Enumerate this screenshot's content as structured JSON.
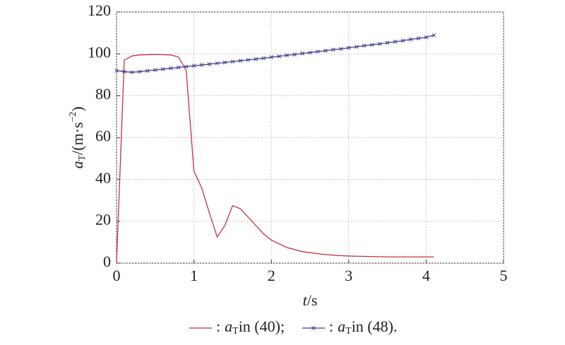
{
  "chart_data": {
    "type": "line",
    "x_label": {
      "symbol": "t",
      "unit": "/s"
    },
    "y_label": {
      "symbol": "a",
      "subscript": "T",
      "unit": "/(m·s",
      "exponent": "−2",
      "close": ")"
    },
    "xlim": [
      0,
      5
    ],
    "xticks": [
      0,
      1,
      2,
      3,
      4,
      5
    ],
    "ylim": [
      0,
      120
    ],
    "yticks": [
      0,
      20,
      40,
      60,
      80,
      100,
      120
    ],
    "grid": true,
    "series": [
      {
        "name_parts": [
          ":",
          "a",
          "T",
          "in (40);"
        ],
        "color": "#c8323a",
        "marker": "none",
        "x": [
          0,
          0.1,
          0.2,
          0.3,
          0.5,
          0.7,
          0.8,
          0.9,
          1.0,
          1.1,
          1.2,
          1.3,
          1.4,
          1.5,
          1.6,
          1.7,
          1.8,
          1.9,
          2.0,
          2.2,
          2.4,
          2.6,
          2.8,
          3.0,
          3.5,
          4.1
        ],
        "values": [
          0,
          97,
          99,
          99.5,
          99.7,
          99.5,
          98.5,
          92,
          44,
          36,
          24,
          12.5,
          18,
          27.5,
          26,
          22,
          18,
          14,
          11,
          7.5,
          5.5,
          4.5,
          3.8,
          3.4,
          3.0,
          3.0
        ]
      },
      {
        "name_parts": [
          ":",
          "a",
          "T",
          "in (48)."
        ],
        "color": "#3a3f8f",
        "marker": "x",
        "x": [
          0,
          0.1,
          0.2,
          0.3,
          0.4,
          0.5,
          0.6,
          0.7,
          0.8,
          0.9,
          1.0,
          1.1,
          1.2,
          1.3,
          1.4,
          1.5,
          1.6,
          1.7,
          1.8,
          1.9,
          2.0,
          2.1,
          2.2,
          2.3,
          2.4,
          2.5,
          2.6,
          2.7,
          2.8,
          2.9,
          3.0,
          3.1,
          3.2,
          3.3,
          3.4,
          3.5,
          3.6,
          3.7,
          3.8,
          3.9,
          4.0,
          4.1
        ],
        "values": [
          92,
          91.5,
          91.2,
          91.5,
          91.9,
          92.3,
          92.7,
          93.1,
          93.5,
          93.9,
          94.3,
          94.7,
          95.1,
          95.5,
          95.9,
          96.3,
          96.7,
          97.1,
          97.5,
          97.9,
          98.4,
          98.8,
          99.3,
          99.7,
          100.2,
          100.6,
          101.1,
          101.5,
          102.0,
          102.4,
          102.9,
          103.4,
          103.9,
          104.3,
          104.8,
          105.3,
          105.8,
          106.3,
          106.9,
          107.4,
          107.9,
          108.9
        ]
      }
    ]
  }
}
